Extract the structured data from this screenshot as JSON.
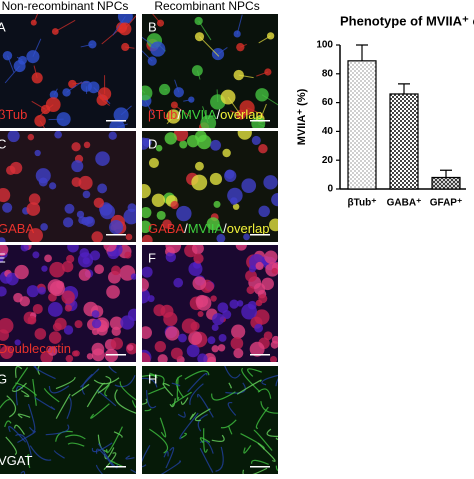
{
  "figure": {
    "headers": [
      "Non-recombinant NPCs",
      "Recombinant NPCs"
    ],
    "panels": [
      {
        "letter": "A",
        "label": [
          {
            "text": "βTub",
            "color": "#e8322c"
          }
        ]
      },
      {
        "letter": "B",
        "label": [
          {
            "text": "βTub",
            "color": "#e8322c"
          },
          {
            "text": "/",
            "color": "#ffffff"
          },
          {
            "text": "MVIIA",
            "color": "#3fd13f"
          },
          {
            "text": "/",
            "color": "#ffffff"
          },
          {
            "text": "overlap",
            "color": "#f2f23a"
          }
        ]
      },
      {
        "letter": "C",
        "label": [
          {
            "text": "GABA",
            "color": "#e8322c"
          }
        ]
      },
      {
        "letter": "D",
        "label": [
          {
            "text": "GABA",
            "color": "#e8322c"
          },
          {
            "text": "/",
            "color": "#ffffff"
          },
          {
            "text": "MVIIA",
            "color": "#3fd13f"
          },
          {
            "text": "/",
            "color": "#ffffff"
          },
          {
            "text": "overlap",
            "color": "#f2f23a"
          }
        ]
      },
      {
        "letter": "E",
        "label": [
          {
            "text": "Doublecortin",
            "color": "#e8322c"
          }
        ]
      },
      {
        "letter": "F",
        "label": []
      },
      {
        "letter": "G",
        "label": [
          {
            "text": "VGAT",
            "color": "#ffffff"
          }
        ]
      },
      {
        "letter": "H",
        "label": []
      }
    ]
  },
  "chart_data": {
    "type": "bar",
    "title": "Phenotype of MVIIA⁺ cel",
    "y_label": "MVIIA⁺ (%)",
    "categories": [
      "βTub⁺",
      "GABA⁺",
      "GFAP⁺"
    ],
    "values": [
      89,
      66,
      8
    ],
    "errors": [
      11,
      7,
      5
    ],
    "color": "#000000",
    "ylim": [
      0,
      100
    ],
    "yticks": [
      0,
      20,
      40,
      60,
      80,
      100
    ],
    "grid": false
  }
}
